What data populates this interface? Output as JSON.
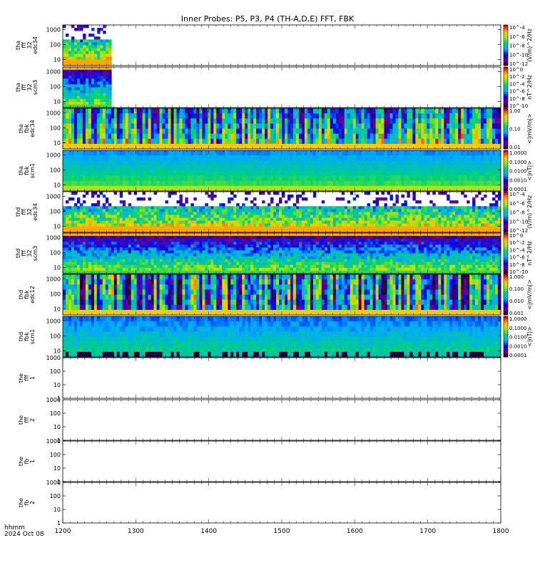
{
  "page": {
    "title": "Inner Probes: P5, P3, P4 (TH-A,D,E) FFT, FBK",
    "x_unit_label": "hhmm",
    "date_label": "2024 Oct 08"
  },
  "chart_data": {
    "type": "heatmap",
    "title": "Inner Probes: P5, P3, P4 (TH-A,D,E) FFT, FBK",
    "x_axis": {
      "label": "hhmm",
      "ticks": [
        "1200",
        "1300",
        "1400",
        "1500",
        "1600",
        "1700",
        "1800"
      ],
      "range": [
        "1200",
        "1800"
      ]
    },
    "y_scale": "log",
    "panels": [
      {
        "id": "tha-fff32-edc34",
        "ylabel": [
          "tha",
          "fff",
          "32",
          "edc34"
        ],
        "yticks": [
          "10",
          "100",
          "1000"
        ],
        "yrange": [
          4,
          2000
        ],
        "cbar_label": "(V/m)^2/Hz",
        "cbar_ticks": [
          "10^-12",
          "10^-10",
          "10^-8",
          "10^-6",
          "10^-4"
        ],
        "style": "fft_e",
        "data_extent": [
          "1200",
          "1240"
        ]
      },
      {
        "id": "tha-fff32-scm3",
        "ylabel": [
          "tha",
          "fff",
          "32",
          "scm3"
        ],
        "yticks": [
          "10",
          "100",
          "1000"
        ],
        "yrange": [
          4,
          2000
        ],
        "cbar_label": "nT^2/Hz",
        "cbar_ticks": [
          "10^-10",
          "10^-8",
          "10^-6",
          "10^-4",
          "10^-2",
          "10^0"
        ],
        "style": "fft_b",
        "data_extent": [
          "1200",
          "1240"
        ]
      },
      {
        "id": "tha-fbk-edc34",
        "ylabel": [
          "tha",
          "fbk",
          "edc34"
        ],
        "yticks": [
          "10",
          "100",
          "1000"
        ],
        "yrange": [
          4,
          2000
        ],
        "cbar_label": "<|mV/m|>",
        "cbar_ticks": [
          "0.01",
          "0.10",
          "1.00"
        ],
        "style": "fbk_e",
        "data_extent": [
          "1200",
          "1800"
        ]
      },
      {
        "id": "tha-fbk-scm1",
        "ylabel": [
          "tha",
          "fbk",
          "scm1"
        ],
        "yticks": [
          "10",
          "100",
          "1000"
        ],
        "yrange": [
          4,
          2000
        ],
        "cbar_label": "<|nT|>",
        "cbar_ticks": [
          "0.0001",
          "0.0010",
          "0.0100",
          "0.1000",
          "1.0000"
        ],
        "style": "fbk_b",
        "data_extent": [
          "1200",
          "1800"
        ]
      },
      {
        "id": "thd-fff32-edc34",
        "ylabel": [
          "thd",
          "fff",
          "32",
          "edc34"
        ],
        "yticks": [
          "10",
          "100",
          "1000"
        ],
        "yrange": [
          4,
          2000
        ],
        "cbar_label": "(V/m)^2/Hz",
        "cbar_ticks": [
          "10^-12",
          "10^-10",
          "10^-8",
          "10^-6",
          "10^-4"
        ],
        "style": "fft_e",
        "data_extent": [
          "1200",
          "1800"
        ]
      },
      {
        "id": "thd-fff32-scm3",
        "ylabel": [
          "thd",
          "fff",
          "32",
          "scm3"
        ],
        "yticks": [
          "10",
          "100",
          "1000"
        ],
        "yrange": [
          4,
          2000
        ],
        "cbar_label": "nT^2/Hz",
        "cbar_ticks": [
          "10^-10",
          "10^-8",
          "10^-6",
          "10^-4",
          "10^-2",
          "10^0"
        ],
        "style": "fft_b",
        "data_extent": [
          "1200",
          "1800"
        ]
      },
      {
        "id": "thd-fbk-edc12",
        "ylabel": [
          "thd",
          "fbk",
          "edc12"
        ],
        "yticks": [
          "10",
          "100",
          "1000"
        ],
        "yrange": [
          4,
          2000
        ],
        "cbar_label": "<|mV/m|>",
        "cbar_ticks": [
          "0.001",
          "0.010",
          "0.100",
          "1.000"
        ],
        "style": "fbk_e2",
        "data_extent": [
          "1200",
          "1800"
        ]
      },
      {
        "id": "thd-fbk-scm1",
        "ylabel": [
          "thd",
          "fbk",
          "scm1"
        ],
        "yticks": [
          "10",
          "100",
          "1000"
        ],
        "yrange": [
          4,
          2000
        ],
        "cbar_label": "<|nT|>",
        "cbar_ticks": [
          "0.0001",
          "0.0010",
          "0.0100",
          "0.1000",
          "1.0000"
        ],
        "style": "fbk_b2",
        "data_extent": [
          "1200",
          "1800"
        ]
      },
      {
        "id": "the-fff-1",
        "ylabel": [
          "the",
          "fff",
          "1"
        ],
        "yticks": [
          "1",
          "10",
          "100",
          "1000"
        ],
        "yrange": [
          1,
          1000
        ],
        "style": "empty"
      },
      {
        "id": "the-fff-2",
        "ylabel": [
          "the",
          "fff",
          "2"
        ],
        "yticks": [
          "1",
          "10",
          "100",
          "1000"
        ],
        "yrange": [
          1,
          1000
        ],
        "style": "empty"
      },
      {
        "id": "the-fb-1",
        "ylabel": [
          "the",
          "fb",
          "1"
        ],
        "yticks": [
          "1",
          "10",
          "100",
          "1000"
        ],
        "yrange": [
          1,
          1000
        ],
        "style": "empty"
      },
      {
        "id": "the-fb-2",
        "ylabel": [
          "the",
          "fb",
          "2"
        ],
        "yticks": [
          "1",
          "10",
          "100",
          "1000"
        ],
        "yrange": [
          1,
          1000
        ],
        "style": "empty"
      }
    ]
  }
}
